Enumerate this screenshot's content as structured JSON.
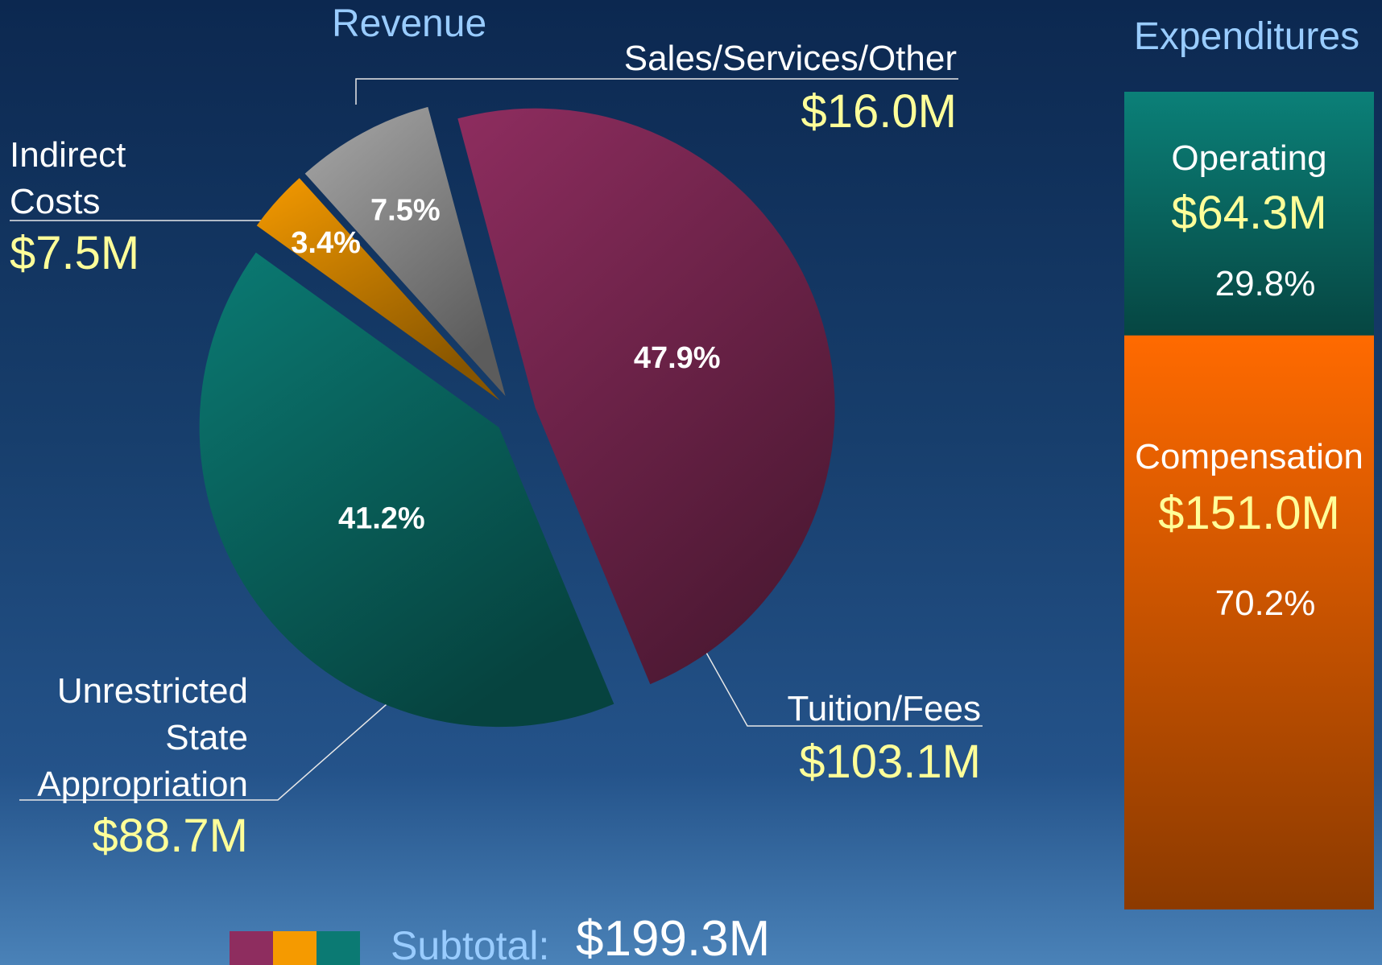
{
  "chart_data": [
    {
      "type": "pie",
      "title": "Revenue",
      "categories": [
        "Tuition/Fees",
        "Unrestricted State Appropriation",
        "Indirect Costs",
        "Sales/Services/Other"
      ],
      "values": [
        47.9,
        41.2,
        3.4,
        7.5
      ],
      "value_labels": [
        "47.9%",
        "41.2%",
        "3.4%",
        "7.5%"
      ],
      "amount_labels": [
        "$103.1M",
        "$88.7M",
        "$7.5M",
        "$16.0M"
      ],
      "colors": [
        "#8e2d5f",
        "#0b7a73",
        "#f59a00",
        "#a8a8a8"
      ],
      "subtotal_label": "Subtotal:",
      "subtotal": "$199.3M"
    },
    {
      "type": "stacked-bar",
      "title": "Expenditures",
      "series": [
        {
          "name": "Operating",
          "color": "#0b8078",
          "values": [
            29.8
          ],
          "value_labels": [
            "29.8%"
          ],
          "amount_label": "$64.3M"
        },
        {
          "name": "Compensation",
          "color": "#ff6a00",
          "values": [
            70.2
          ],
          "value_labels": [
            "70.2%"
          ],
          "amount_label": "$151.0M"
        }
      ]
    }
  ]
}
